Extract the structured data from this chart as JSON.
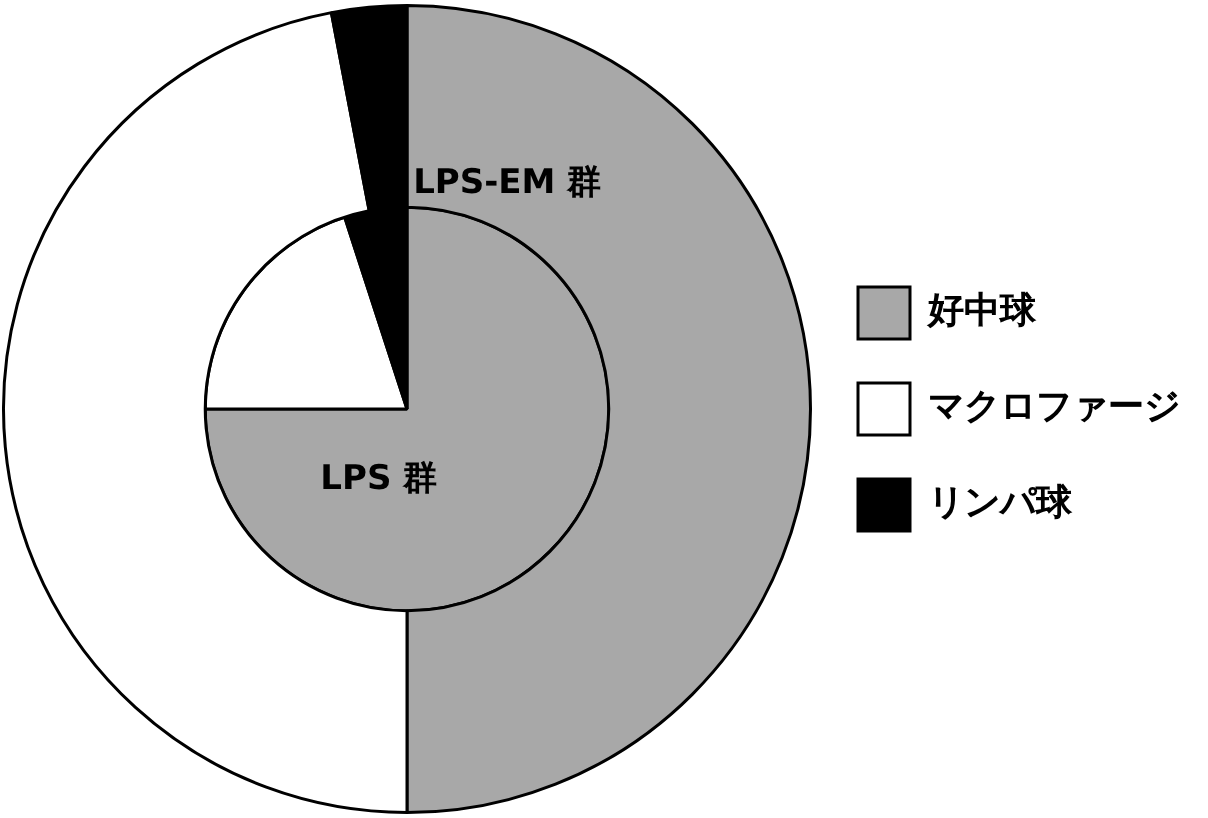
{
  "chart_data": {
    "type": "pie",
    "categories": [
      "好中球",
      "マクロファージ",
      "リンパ球"
    ],
    "colors": [
      "#a8a8a8",
      "#ffffff",
      "#000000"
    ],
    "legend": "right",
    "series": [
      {
        "name": "LPS 群",
        "values": [
          75,
          20,
          5
        ]
      },
      {
        "name": "LPS-EM 群",
        "values": [
          50,
          47,
          3
        ]
      }
    ]
  }
}
